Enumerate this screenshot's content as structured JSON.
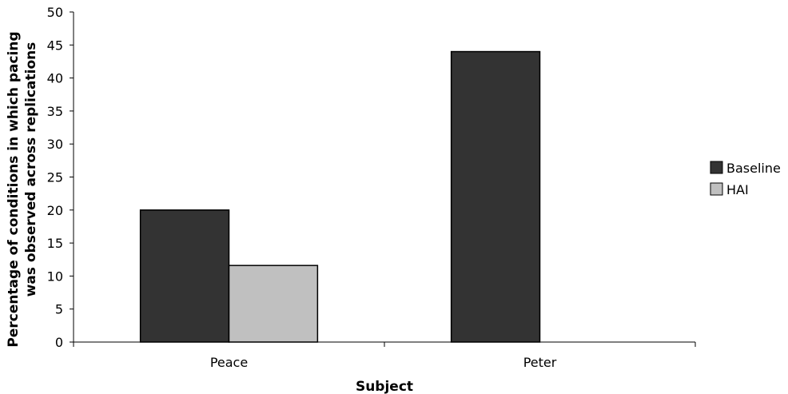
{
  "chart_data": {
    "type": "bar",
    "categories": [
      "Peace",
      "Peter"
    ],
    "series": [
      {
        "name": "Baseline",
        "values": [
          20,
          44
        ],
        "color": "#333333"
      },
      {
        "name": "HAI",
        "values": [
          11.6,
          0
        ],
        "color": "#c0c0c0"
      }
    ],
    "xlabel": "Subject",
    "ylabel_lines": [
      "Percentage of conditions in which pacing",
      "was observed across replications"
    ],
    "ylim": [
      0,
      50
    ],
    "yticks": [
      0,
      5,
      10,
      15,
      20,
      25,
      30,
      35,
      40,
      45,
      50
    ],
    "grid": false,
    "legend_position": "right"
  }
}
